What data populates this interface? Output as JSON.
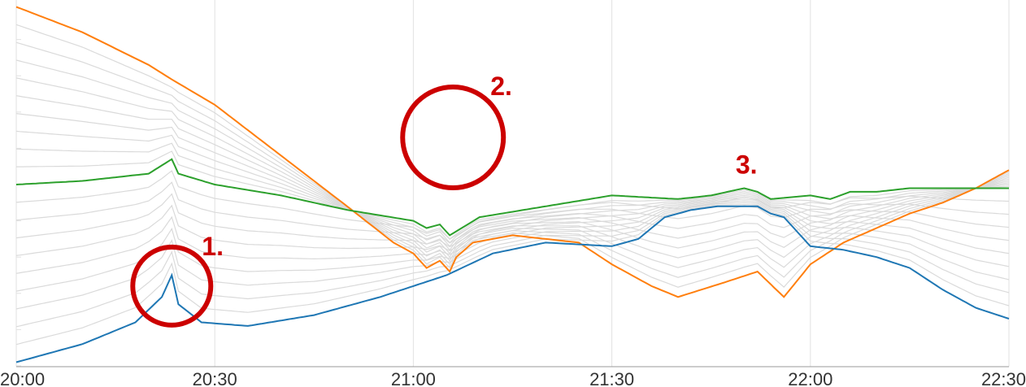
{
  "chart_data": {
    "type": "line",
    "xlabel": "",
    "ylabel": "",
    "x_range": [
      "20:00",
      "22:30"
    ],
    "xticks": [
      "20:00",
      "20:30",
      "21:00",
      "21:30",
      "22:00",
      "22:30"
    ],
    "y_ticks_shown": false,
    "grid": true,
    "legend": "none",
    "background_series_color": "#dadada",
    "highlighted": [
      {
        "color": "#ff7f0e",
        "samples": [
          [
            0.0,
            0.99
          ],
          [
            10,
            0.92
          ],
          [
            20,
            0.83
          ],
          [
            23.5,
            0.79
          ],
          [
            30,
            0.72
          ],
          [
            40,
            0.58
          ],
          [
            50,
            0.44
          ],
          [
            57,
            0.34
          ],
          [
            60,
            0.31
          ],
          [
            62,
            0.27
          ],
          [
            64,
            0.29
          ],
          [
            65.5,
            0.26
          ],
          [
            66.5,
            0.3
          ],
          [
            69,
            0.34
          ],
          [
            75,
            0.36
          ],
          [
            85,
            0.34
          ],
          [
            90,
            0.28
          ],
          [
            96,
            0.22
          ],
          [
            100,
            0.19
          ],
          [
            107,
            0.23
          ],
          [
            112,
            0.26
          ],
          [
            116,
            0.19
          ],
          [
            120,
            0.28
          ],
          [
            125,
            0.34
          ],
          [
            135,
            0.42
          ],
          [
            140,
            0.45
          ],
          [
            145,
            0.49
          ],
          [
            150,
            0.54
          ]
        ]
      },
      {
        "color": "#2ca02c",
        "samples": [
          [
            0.0,
            0.5
          ],
          [
            10,
            0.51
          ],
          [
            20,
            0.53
          ],
          [
            23.5,
            0.57
          ],
          [
            24.5,
            0.53
          ],
          [
            30,
            0.5
          ],
          [
            40,
            0.47
          ],
          [
            50,
            0.43
          ],
          [
            60,
            0.4
          ],
          [
            62,
            0.38
          ],
          [
            64,
            0.39
          ],
          [
            65.5,
            0.36
          ],
          [
            70,
            0.41
          ],
          [
            80,
            0.44
          ],
          [
            90,
            0.47
          ],
          [
            100,
            0.46
          ],
          [
            105,
            0.47
          ],
          [
            110,
            0.49
          ],
          [
            112,
            0.48
          ],
          [
            114,
            0.46
          ],
          [
            120,
            0.47
          ],
          [
            123,
            0.46
          ],
          [
            126,
            0.48
          ],
          [
            130,
            0.48
          ],
          [
            135,
            0.49
          ],
          [
            140,
            0.49
          ],
          [
            145,
            0.49
          ],
          [
            150,
            0.49
          ]
        ]
      },
      {
        "color": "#1f77b4",
        "samples": [
          [
            0.0,
            0.01
          ],
          [
            10,
            0.06
          ],
          [
            18,
            0.12
          ],
          [
            22,
            0.19
          ],
          [
            23.5,
            0.25
          ],
          [
            24.5,
            0.17
          ],
          [
            28,
            0.12
          ],
          [
            35,
            0.11
          ],
          [
            45,
            0.14
          ],
          [
            55,
            0.19
          ],
          [
            65,
            0.25
          ],
          [
            72,
            0.31
          ],
          [
            80,
            0.34
          ],
          [
            90,
            0.33
          ],
          [
            94,
            0.35
          ],
          [
            98,
            0.41
          ],
          [
            102,
            0.43
          ],
          [
            106,
            0.44
          ],
          [
            112,
            0.44
          ],
          [
            114,
            0.42
          ],
          [
            116,
            0.41
          ],
          [
            118,
            0.37
          ],
          [
            120,
            0.33
          ],
          [
            125,
            0.32
          ],
          [
            130,
            0.3
          ],
          [
            135,
            0.27
          ],
          [
            140,
            0.21
          ],
          [
            145,
            0.16
          ],
          [
            150,
            0.13
          ]
        ]
      }
    ],
    "annotations": [
      {
        "text": "1.",
        "x": 23.5,
        "y": 0.22
      },
      {
        "text": "2.",
        "x": 66,
        "y": 0.63
      },
      {
        "text": "3.",
        "x": 113,
        "y": 0.53
      }
    ]
  }
}
